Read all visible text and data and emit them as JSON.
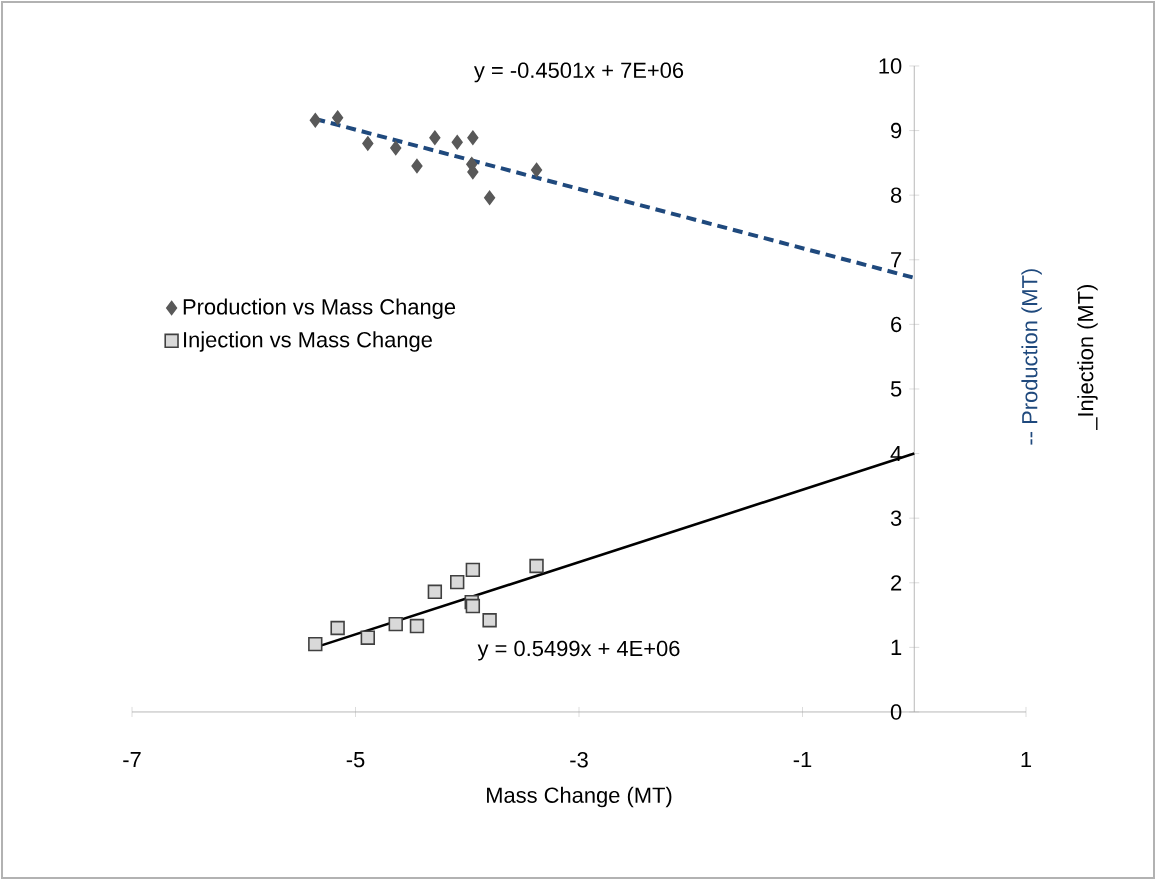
{
  "chart_data": {
    "type": "scatter",
    "xlabel": "Mass Change (MT)",
    "ylabel": "-- Production (MT)",
    "xlim": [
      -7,
      1
    ],
    "ylim": [
      0,
      10
    ],
    "xticks": [
      -7,
      -5,
      -3,
      -1,
      1
    ],
    "yticks": [
      0,
      1,
      2,
      3,
      4,
      5,
      6,
      7,
      8,
      9,
      10
    ],
    "grid": false,
    "legend": "left",
    "annotations": [
      "y = -0.4501x + 7E+06",
      "y = 0.5499x + 4E+06",
      "_Injection (MT)"
    ],
    "series": [
      {
        "name": "Production vs Mass Change",
        "marker": "diamond",
        "color": "#595959",
        "x": [
          -5.36,
          -5.16,
          -4.89,
          -4.64,
          -4.45,
          -4.29,
          -4.09,
          -3.95,
          -3.96,
          -3.95,
          -3.8,
          -3.38
        ],
        "values": [
          9.16,
          9.2,
          8.8,
          8.73,
          8.45,
          8.89,
          8.82,
          8.89,
          8.48,
          8.36,
          7.96,
          8.39
        ]
      },
      {
        "name": "Injection vs Mass Change",
        "marker": "square",
        "color": "#d9d9d9",
        "x": [
          -5.36,
          -5.16,
          -4.89,
          -4.64,
          -4.45,
          -4.29,
          -4.09,
          -3.95,
          -3.96,
          -3.95,
          -3.8,
          -3.38
        ],
        "values": [
          1.05,
          1.3,
          1.15,
          1.36,
          1.33,
          1.86,
          2.01,
          2.2,
          1.7,
          1.64,
          1.42,
          2.26
        ]
      },
      {
        "type": "line",
        "line_style": "dashed",
        "marker": "none",
        "color": "#1f497d",
        "x": [
          -5.36,
          0
        ],
        "values": [
          9.18,
          6.72
        ]
      },
      {
        "type": "line",
        "line_style": "solid",
        "marker": "none",
        "color": "#000000",
        "x": [
          -5.36,
          0
        ],
        "values": [
          1.0,
          4.0
        ]
      }
    ]
  }
}
